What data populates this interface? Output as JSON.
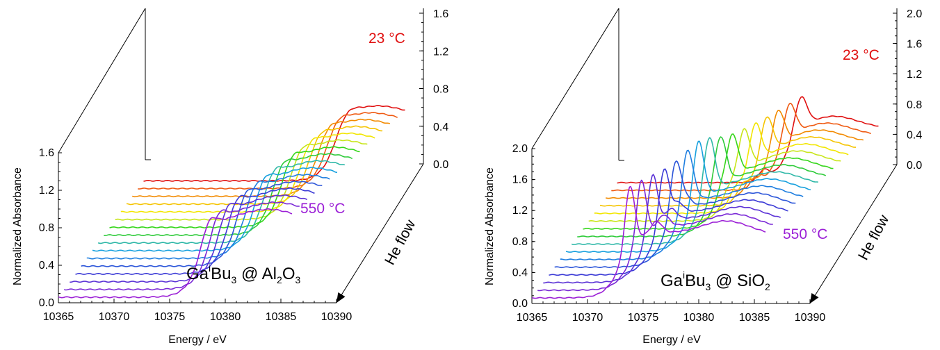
{
  "chart_data": [
    {
      "type": "line",
      "subtype": "waterfall-3d",
      "xlabel": "Energy / eV",
      "ylabel": "Normalized Absorbance",
      "x_ticks": [
        "10365",
        "10370",
        "10375",
        "10380",
        "10385",
        "10390"
      ],
      "xlim": [
        10365,
        10390
      ],
      "ylim": [
        0.0,
        1.6
      ],
      "y_ticks": [
        "0.0",
        "0.4",
        "0.8",
        "1.2",
        "1.6"
      ],
      "back_y_ticks": [
        "0.0",
        "0.4",
        "0.8",
        "1.2",
        "1.6"
      ],
      "back_ylim": [
        0.0,
        1.6
      ],
      "depth_label": "He flow",
      "temp_top": "23 °C",
      "temp_bottom": "550 °C",
      "sample": {
        "pre": "Ga",
        "sup1": "i",
        "mid": "Bu",
        "sub1": "3",
        "post": " @ Al",
        "sub2": "2",
        "post2": "O",
        "sub3": "3"
      },
      "series_count": 16,
      "series_colors": [
        "#9b1fd6",
        "#7a28d6",
        "#5a31d6",
        "#3c3bd6",
        "#2b55d9",
        "#1f7fe0",
        "#17a0de",
        "#2fb8a8",
        "#2ecb3a",
        "#35d61a",
        "#c8e51a",
        "#f2e600",
        "#f5c400",
        "#f28a00",
        "#ef5a12",
        "#e01010"
      ],
      "spectrum": {
        "edge_energy": 10377.8,
        "white_line": [
          {
            "e": 10378.5,
            "h": 0.22,
            "w": 0.9
          }
        ],
        "features": [
          {
            "e": 10384,
            "h": 0.12,
            "w": 3
          }
        ],
        "top_white_line_energy": 10383.2
      }
    },
    {
      "type": "line",
      "subtype": "waterfall-3d",
      "xlabel": "Energy / eV",
      "ylabel": "Normalized Absorbance",
      "x_ticks": [
        "10365",
        "10370",
        "10375",
        "10380",
        "10385",
        "10390"
      ],
      "xlim": [
        10365,
        10390
      ],
      "ylim": [
        0.0,
        2.0
      ],
      "y_ticks": [
        "0.0",
        "0.4",
        "0.8",
        "1.2",
        "1.6",
        "2.0"
      ],
      "back_y_ticks": [
        "0.0",
        "0.4",
        "0.8",
        "1.2",
        "1.6",
        "2.0"
      ],
      "back_ylim": [
        0.0,
        2.0
      ],
      "depth_label": "He flow",
      "temp_top": "23 °C",
      "temp_bottom": "550 °C",
      "sample": {
        "pre": "Ga",
        "sup1": "i",
        "mid": "Bu",
        "sub1": "3",
        "post": " @ SiO",
        "sub2": "2",
        "post2": "",
        "sub3": ""
      },
      "series_count": 16,
      "series_colors": [
        "#9b1fd6",
        "#7a28d6",
        "#5a31d6",
        "#3c3bd6",
        "#2b55d9",
        "#1f7fe0",
        "#17a0de",
        "#2fb8a8",
        "#2ecb3a",
        "#35d61a",
        "#c8e51a",
        "#f2e600",
        "#f5c400",
        "#f28a00",
        "#ef5a12",
        "#e01010"
      ],
      "spectrum": {
        "edge_energy": 10373.0,
        "white_line": [
          {
            "e": 10373.8,
            "h": 0.95,
            "w": 0.6
          }
        ],
        "features": [
          {
            "e": 10376.2,
            "h": 0.18,
            "w": 0.7
          },
          {
            "e": 10382.5,
            "h": 0.2,
            "w": 3
          }
        ],
        "top_white_line_energy": 10381.5
      }
    }
  ]
}
